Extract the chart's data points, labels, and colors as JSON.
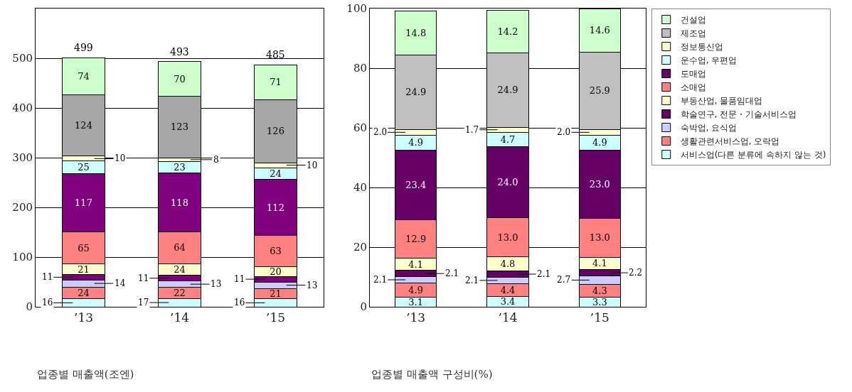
{
  "chart_data": [
    {
      "type": "bar",
      "title": "업종별 매출액(조엔)",
      "stacked": true,
      "categories": [
        "’13",
        "’14",
        "’15"
      ],
      "ylim": [
        0,
        600
      ],
      "yticks": [
        0,
        100,
        200,
        300,
        400,
        500
      ],
      "grid": "y",
      "legend": false,
      "data_labels": true,
      "totals": [
        "499",
        "493",
        "485"
      ],
      "series": [
        {
          "color": "#ccffff",
          "values": [
            16,
            17,
            16
          ]
        },
        {
          "color": "#ff8080",
          "values": [
            24,
            22,
            21
          ]
        },
        {
          "color": "#ccccff",
          "values": [
            14,
            13,
            13
          ]
        },
        {
          "color": "#800080",
          "values": [
            11,
            11,
            11
          ]
        },
        {
          "color": "#ffffcc",
          "values": [
            21,
            24,
            20
          ]
        },
        {
          "color": "#ff8080",
          "values": [
            65,
            64,
            63
          ]
        },
        {
          "color": "#800080",
          "values": [
            117,
            118,
            112
          ]
        },
        {
          "color": "#ccffff",
          "values": [
            25,
            23,
            24
          ]
        },
        {
          "color": "#ffffcc",
          "values": [
            10,
            8,
            10
          ]
        },
        {
          "color": "#a6a6a6",
          "values": [
            124,
            123,
            126
          ]
        },
        {
          "color": "#ccffcc",
          "values": [
            74,
            70,
            71
          ]
        }
      ]
    },
    {
      "type": "bar",
      "title": "업종별 매출액 구성비(%)",
      "stacked": true,
      "categories": [
        "’13",
        "’14",
        "’15"
      ],
      "ylim": [
        0,
        100
      ],
      "yticks": [
        0,
        20,
        40,
        60,
        80,
        100
      ],
      "grid": "y",
      "legend": "right",
      "data_labels": true,
      "series": [
        {
          "name": "서비스업(다른 분류에 속하지 않는 것)",
          "color": "#ccffff",
          "values": [
            3.1,
            3.4,
            3.3
          ],
          "value_labels": [
            "3.1",
            "3.4",
            "3.3"
          ]
        },
        {
          "name": "생활관련서비스업, 오락업",
          "color": "#ff8080",
          "values": [
            4.9,
            4.4,
            4.3
          ],
          "value_labels": [
            "4.9",
            "4.4",
            "4.3"
          ]
        },
        {
          "name": "숙박업, 요식업",
          "color": "#ccccff",
          "values": [
            2.1,
            2.1,
            2.7
          ],
          "value_labels": [
            "2.1",
            "2.1",
            "2.7"
          ]
        },
        {
          "name": "학술연구, 전문・기술서비스업",
          "color": "#660066",
          "values": [
            2.1,
            2.1,
            2.2
          ],
          "value_labels": [
            "2.1",
            "2.1",
            "2.2"
          ]
        },
        {
          "name": "부동산업, 물품임대업",
          "color": "#ffffcc",
          "values": [
            4.1,
            4.8,
            4.1
          ],
          "value_labels": [
            "4.1",
            "4.8",
            "4.1"
          ]
        },
        {
          "name": "소매업",
          "color": "#ff8080",
          "values": [
            12.9,
            13.0,
            13.0
          ],
          "value_labels": [
            "12.9",
            "13.0",
            "13.0"
          ]
        },
        {
          "name": "도매업",
          "color": "#660066",
          "values": [
            23.4,
            24.0,
            23.0
          ],
          "value_labels": [
            "23.4",
            "24.0",
            "23.0"
          ]
        },
        {
          "name": "운수업, 우편업",
          "color": "#ccffff",
          "values": [
            4.9,
            4.7,
            4.9
          ],
          "value_labels": [
            "4.9",
            "4.7",
            "4.9"
          ]
        },
        {
          "name": "정보통신업",
          "color": "#ffffcc",
          "values": [
            2.0,
            1.7,
            2.0
          ],
          "value_labels": [
            "2.0",
            "1.7",
            "2.0"
          ]
        },
        {
          "name": "제조업",
          "color": "#c0c0c0",
          "values": [
            24.9,
            24.9,
            25.9
          ],
          "value_labels": [
            "24.9",
            "24.9",
            "25.9"
          ]
        },
        {
          "name": "건설업",
          "color": "#ccffcc",
          "values": [
            14.8,
            14.2,
            14.6
          ],
          "value_labels": [
            "14.8",
            "14.2",
            "14.6"
          ]
        }
      ]
    }
  ]
}
